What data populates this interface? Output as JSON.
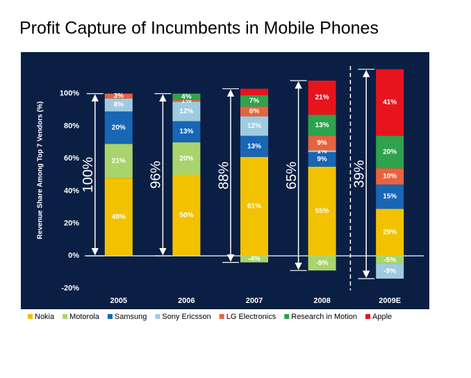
{
  "chart_data": {
    "type": "stacked_bar",
    "title": "Profit Capture of Incumbents in Mobile Phones",
    "y_label": "Revenue Share Among Top 7 Vendors (%)",
    "categories": [
      "2005",
      "2006",
      "2007",
      "2008",
      "2009E"
    ],
    "series": [
      {
        "name": "Nokia",
        "color": "#f2c200",
        "values": [
          48,
          50,
          61,
          55,
          29
        ],
        "value_labels": [
          "48%",
          "50%",
          "61%",
          "55%",
          "29%"
        ]
      },
      {
        "name": "Motorola",
        "color": "#a9d46c",
        "values": [
          21,
          20,
          -4,
          -9,
          -5
        ],
        "value_labels": [
          "21%",
          "20%",
          "-4%",
          "-9%",
          "-5%"
        ]
      },
      {
        "name": "Samsung",
        "color": "#1866b4",
        "values": [
          20,
          13,
          13,
          9,
          15
        ],
        "value_labels": [
          "20%",
          "13%",
          "13%",
          "9%",
          "15%"
        ]
      },
      {
        "name": "Sony Ericsson",
        "color": "#9fcbe0",
        "values": [
          8,
          12,
          12,
          1,
          -9
        ],
        "value_labels": [
          "8%",
          "12%",
          "12%",
          "1%",
          "-9%"
        ]
      },
      {
        "name": "LG Electronics",
        "color": "#e8623e",
        "values": [
          3,
          1,
          6,
          9,
          10
        ],
        "value_labels": [
          "3%",
          "1%",
          "6%",
          "9%",
          "10%"
        ]
      },
      {
        "name": "Research in Motion",
        "color": "#2ea24c",
        "values": [
          0,
          4,
          7,
          13,
          20
        ],
        "value_labels": [
          null,
          "4%",
          "7%",
          "13%",
          "20%"
        ]
      },
      {
        "name": "Apple",
        "color": "#e8141c",
        "values": [
          0,
          0,
          4,
          21,
          41
        ],
        "value_labels": [
          null,
          null,
          null,
          "21%",
          "41%"
        ]
      }
    ],
    "ylim": [
      -20,
      120
    ],
    "yticks": [
      {
        "value": -20,
        "label": "-20%"
      },
      {
        "value": 0,
        "label": "0%"
      },
      {
        "value": 20,
        "label": "20%"
      },
      {
        "value": 40,
        "label": "40%"
      },
      {
        "value": 60,
        "label": "60%"
      },
      {
        "value": 80,
        "label": "80%"
      },
      {
        "value": 100,
        "label": "100%"
      }
    ],
    "grid": false,
    "legend": "bottom",
    "annotations": [
      {
        "text": "100%",
        "x": "2005"
      },
      {
        "text": "96%",
        "x": "2006"
      },
      {
        "text": "88%",
        "x": "2007"
      },
      {
        "text": "65%",
        "x": "2008"
      },
      {
        "text": "39%",
        "x": "2009E"
      }
    ]
  }
}
